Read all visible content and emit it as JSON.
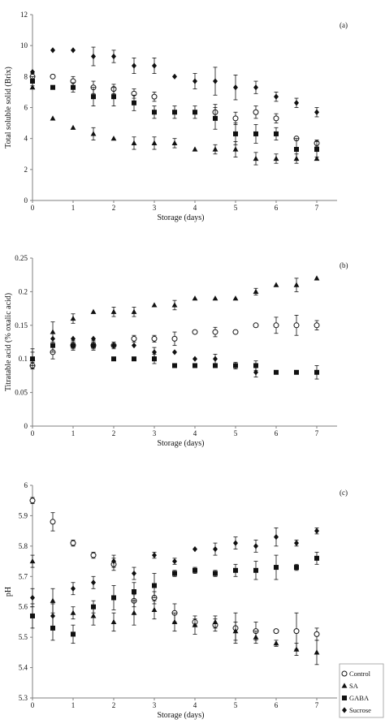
{
  "colors": {
    "marker": "#111111",
    "axis": "#7f7f7f",
    "background": "#ffffff"
  },
  "legend": {
    "placement": "right of panel (c)",
    "entries": [
      "Control",
      "SA",
      "GABA",
      "Sucrose"
    ],
    "markers": [
      "open-circle",
      "filled-triangle",
      "filled-square",
      "filled-diamond"
    ]
  },
  "chart_data": [
    {
      "type": "scatter",
      "panel_label": "(a)",
      "title": "",
      "xlabel": "Storage (days)",
      "ylabel": "Total soluble solid (Brix)",
      "xlim": [
        0,
        7.5
      ],
      "ylim": [
        0,
        12
      ],
      "xticks": [
        0,
        1,
        2,
        3,
        4,
        5,
        6,
        7
      ],
      "yticks": [
        0,
        2,
        4,
        6,
        8,
        10,
        12
      ],
      "ytick_labels": [
        "0",
        "2",
        "4",
        "6",
        "8",
        "10",
        "12"
      ],
      "grid": false,
      "series": [
        {
          "name": "Control",
          "marker": "open-circle",
          "x": [
            0,
            0.5,
            1,
            1.5,
            2,
            2.5,
            3,
            4.5,
            5,
            5.5,
            6,
            6.5,
            7
          ],
          "y": [
            8.0,
            8.0,
            7.7,
            7.3,
            7.2,
            6.9,
            6.7,
            5.7,
            5.3,
            5.7,
            5.3,
            4.0,
            3.7
          ],
          "err": [
            0.2,
            0,
            0.3,
            0.4,
            0.3,
            0.3,
            0.3,
            0.5,
            0.4,
            0.4,
            0.3,
            0,
            0.2
          ]
        },
        {
          "name": "SA",
          "marker": "filled-triangle",
          "x": [
            0,
            0.5,
            1,
            1.5,
            2,
            2.5,
            3,
            3.5,
            4,
            4.5,
            5,
            5.5,
            6,
            6.5,
            7
          ],
          "y": [
            7.3,
            5.3,
            4.7,
            4.3,
            4.0,
            3.7,
            3.7,
            3.7,
            3.3,
            3.3,
            3.3,
            2.7,
            2.7,
            2.7,
            2.7
          ],
          "err": [
            0,
            0,
            0,
            0.4,
            0,
            0.4,
            0.4,
            0.3,
            0,
            0.3,
            0.5,
            0.4,
            0.3,
            0.3,
            0
          ]
        },
        {
          "name": "GABA",
          "marker": "filled-square",
          "x": [
            0,
            0.5,
            1,
            1.5,
            2,
            2.5,
            3,
            3.5,
            4,
            4.5,
            5,
            5.5,
            6,
            6.5,
            7
          ],
          "y": [
            7.7,
            7.3,
            7.3,
            6.7,
            6.7,
            6.3,
            5.7,
            5.7,
            5.7,
            5.3,
            4.3,
            4.3,
            4.3,
            3.3,
            3.3
          ],
          "err": [
            0.3,
            0,
            0.3,
            0.6,
            0.6,
            0.5,
            0.4,
            0.4,
            0.4,
            0.7,
            0.7,
            0.6,
            0.4,
            0.7,
            0.5
          ]
        },
        {
          "name": "Sucrose",
          "marker": "filled-diamond",
          "x": [
            0,
            0.5,
            1,
            1.5,
            2,
            2.5,
            3,
            3.5,
            4,
            4.5,
            5,
            5.5,
            6,
            6.5,
            7
          ],
          "y": [
            8.3,
            9.7,
            9.7,
            9.3,
            9.3,
            8.7,
            8.7,
            8.0,
            7.7,
            7.7,
            7.3,
            7.3,
            6.7,
            6.3,
            5.7
          ],
          "err": [
            0,
            0,
            0,
            0.6,
            0.4,
            0.5,
            0.5,
            0,
            0.5,
            0.9,
            0.8,
            0.4,
            0.3,
            0.3,
            0.3
          ]
        }
      ]
    },
    {
      "type": "scatter",
      "panel_label": "(b)",
      "title": "",
      "xlabel": "Storage (days)",
      "ylabel": "Titratable acid (% oxalic acid)",
      "xlim": [
        0,
        7.5
      ],
      "ylim": [
        0,
        0.25
      ],
      "xticks": [
        0,
        1,
        2,
        3,
        4,
        5,
        6,
        7
      ],
      "yticks": [
        0,
        0.05,
        0.1,
        0.15,
        0.2,
        0.25
      ],
      "ytick_labels": [
        "0",
        "0.05",
        "0.1",
        "0.15",
        "0.2",
        "0.25"
      ],
      "grid": false,
      "series": [
        {
          "name": "Control",
          "marker": "open-circle",
          "x": [
            0,
            0.5,
            1,
            1.5,
            2,
            2.5,
            3,
            3.5,
            4,
            4.5,
            5,
            5.5,
            6,
            6.5,
            7
          ],
          "y": [
            0.09,
            0.11,
            0.12,
            0.12,
            0.12,
            0.13,
            0.13,
            0.13,
            0.14,
            0.14,
            0.14,
            0.15,
            0.15,
            0.15,
            0.15
          ],
          "err": [
            0.005,
            0.01,
            0.005,
            0.005,
            0.005,
            0.005,
            0.005,
            0.01,
            0,
            0.007,
            0,
            0,
            0.012,
            0.015,
            0.007
          ]
        },
        {
          "name": "SA",
          "marker": "filled-triangle",
          "x": [
            0,
            0.5,
            1,
            1.5,
            2,
            2.5,
            3,
            3.5,
            4,
            4.5,
            5,
            5.5,
            6,
            6.5,
            7
          ],
          "y": [
            0.1,
            0.14,
            0.16,
            0.17,
            0.17,
            0.17,
            0.18,
            0.18,
            0.19,
            0.19,
            0.19,
            0.2,
            0.21,
            0.21,
            0.22
          ],
          "err": [
            0.015,
            0.015,
            0.007,
            0,
            0.007,
            0.007,
            0,
            0.007,
            0,
            0,
            0,
            0.005,
            0,
            0.01,
            0
          ]
        },
        {
          "name": "GABA",
          "marker": "filled-square",
          "x": [
            0,
            0.5,
            1,
            1.5,
            2,
            2.5,
            3,
            3.5,
            4,
            4.5,
            5,
            5.5,
            6,
            6.5,
            7
          ],
          "y": [
            0.1,
            0.12,
            0.12,
            0.12,
            0.1,
            0.1,
            0.1,
            0.09,
            0.09,
            0.09,
            0.09,
            0.09,
            0.08,
            0.08,
            0.08
          ],
          "err": [
            0.01,
            0.01,
            0.007,
            0.007,
            0,
            0,
            0.007,
            0,
            0,
            0,
            0.005,
            0.007,
            0,
            0,
            0.01
          ]
        },
        {
          "name": "Sucrose",
          "marker": "filled-diamond",
          "x": [
            0.5,
            1,
            1.5,
            2,
            2.5,
            3,
            3.5,
            4,
            4.5,
            5.5
          ],
          "y": [
            0.13,
            0.13,
            0.13,
            0.12,
            0.12,
            0.11,
            0.11,
            0.1,
            0.1,
            0.08
          ],
          "err": [
            0,
            0,
            0,
            0,
            0,
            0.007,
            0,
            0,
            0.007,
            0.007
          ]
        }
      ]
    },
    {
      "type": "scatter",
      "panel_label": "(c)",
      "title": "",
      "xlabel": "Storage (days)",
      "ylabel": "pH",
      "xlim": [
        0,
        7.5
      ],
      "ylim": [
        5.3,
        6.0
      ],
      "xticks": [
        0,
        1,
        2,
        3,
        4,
        5,
        6,
        7
      ],
      "yticks": [
        5.3,
        5.4,
        5.5,
        5.6,
        5.7,
        5.8,
        5.9,
        6.0
      ],
      "ytick_labels": [
        "5.3",
        "5.4",
        "5.5",
        "5.6",
        "5.7",
        "5.8",
        "5.9",
        "6"
      ],
      "grid": false,
      "series": [
        {
          "name": "Control",
          "marker": "open-circle",
          "x": [
            0,
            0.5,
            1,
            1.5,
            2,
            2.5,
            3,
            3.5,
            4,
            4.5,
            5,
            5.5,
            6,
            6.5,
            7
          ],
          "y": [
            5.95,
            5.88,
            5.81,
            5.77,
            5.74,
            5.62,
            5.63,
            5.58,
            5.55,
            5.54,
            5.53,
            5.52,
            5.52,
            5.52,
            5.51
          ],
          "err": [
            0.01,
            0.03,
            0.01,
            0.01,
            0.02,
            0.02,
            0.02,
            0.03,
            0.01,
            0.02,
            0.05,
            0.03,
            0,
            0.06,
            0.02
          ]
        },
        {
          "name": "SA",
          "marker": "filled-triangle",
          "x": [
            0,
            0.5,
            1,
            1.5,
            2,
            2.5,
            3,
            3.5,
            4,
            4.5,
            5,
            5.5,
            6,
            6.5,
            7
          ],
          "y": [
            5.75,
            5.62,
            5.58,
            5.57,
            5.55,
            5.58,
            5.59,
            5.55,
            5.54,
            5.55,
            5.52,
            5.5,
            5.48,
            5.46,
            5.45
          ],
          "err": [
            0.02,
            0.04,
            0.02,
            0.03,
            0.03,
            0.04,
            0.03,
            0.03,
            0.03,
            0.02,
            0.03,
            0.02,
            0.01,
            0.02,
            0.04
          ]
        },
        {
          "name": "GABA",
          "marker": "filled-square",
          "x": [
            0,
            0.5,
            1,
            1.5,
            2,
            2.5,
            3,
            3.5,
            4,
            4.5,
            5,
            5.5,
            6,
            6.5,
            7
          ],
          "y": [
            5.57,
            5.53,
            5.51,
            5.6,
            5.63,
            5.65,
            5.67,
            5.71,
            5.72,
            5.71,
            5.72,
            5.72,
            5.73,
            5.73,
            5.76
          ],
          "err": [
            0.04,
            0.04,
            0.03,
            0.02,
            0.04,
            0.03,
            0.04,
            0.01,
            0.01,
            0.01,
            0.02,
            0.03,
            0.04,
            0.01,
            0.02
          ]
        },
        {
          "name": "Sucrose",
          "marker": "filled-diamond",
          "x": [
            0,
            0.5,
            1,
            1.5,
            2,
            2.5,
            3,
            3.5,
            4,
            4.5,
            5,
            5.5,
            6,
            6.5,
            7
          ],
          "y": [
            5.63,
            5.57,
            5.66,
            5.68,
            5.75,
            5.71,
            5.77,
            5.75,
            5.79,
            5.79,
            5.81,
            5.8,
            5.83,
            5.81,
            5.85
          ],
          "err": [
            0.03,
            0.04,
            0.02,
            0.02,
            0.02,
            0.02,
            0.01,
            0.01,
            0,
            0.02,
            0.02,
            0.02,
            0.03,
            0.01,
            0.01
          ]
        }
      ]
    }
  ]
}
